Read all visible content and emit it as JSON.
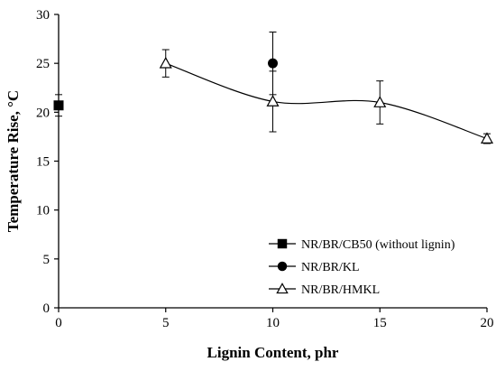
{
  "chart_data": {
    "type": "scatter",
    "xlabel": "Lignin Content, phr",
    "ylabel": "Temperature Rise, °C",
    "xlim": [
      0,
      20
    ],
    "ylim": [
      0,
      30
    ],
    "xticks": [
      0,
      5,
      10,
      15,
      20
    ],
    "yticks": [
      0,
      5,
      10,
      15,
      20,
      25,
      30
    ],
    "grid": false,
    "legend_position": "bottom-right",
    "series": [
      {
        "name": "NR/BR/CB50 (without lignin)",
        "marker": "square",
        "line": false,
        "color": "#000000",
        "points": [
          {
            "x": 0,
            "y": 20.7,
            "err": 1.1
          }
        ]
      },
      {
        "name": "NR/BR/KL",
        "marker": "circle",
        "line": false,
        "color": "#000000",
        "points": [
          {
            "x": 10,
            "y": 25.0,
            "err": 3.2
          }
        ]
      },
      {
        "name": "NR/BR/HMKL",
        "marker": "open-triangle",
        "line": true,
        "smooth": true,
        "color": "#000000",
        "points": [
          {
            "x": 5,
            "y": 25.0,
            "err": 1.4
          },
          {
            "x": 10,
            "y": 21.1,
            "err": 3.1
          },
          {
            "x": 15,
            "y": 21.0,
            "err": 2.2
          },
          {
            "x": 20,
            "y": 17.3,
            "err": 0.5
          }
        ]
      }
    ]
  }
}
